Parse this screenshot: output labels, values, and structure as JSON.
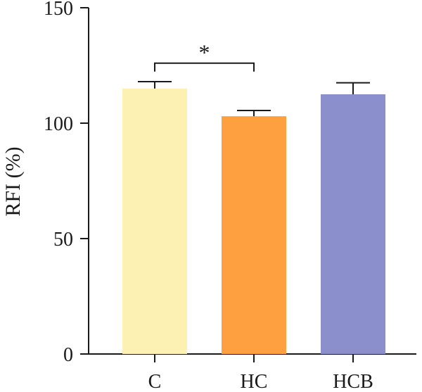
{
  "chart_data": {
    "type": "bar",
    "categories": [
      "C",
      "HC",
      "HCB"
    ],
    "values": [
      115,
      103,
      112.5
    ],
    "errors": [
      3,
      2.5,
      5
    ],
    "colors": [
      "#FDF0B3",
      "#FFA040",
      "#8B90CC"
    ],
    "ylabel": "RFI (%)",
    "ylim": [
      0,
      150
    ],
    "yticks": [
      "0",
      "50",
      "100",
      "150"
    ],
    "ytick_values": [
      0,
      50,
      100,
      150
    ],
    "grid": false,
    "significance": [
      {
        "from": 0,
        "to": 1,
        "label": "*",
        "y": 126
      }
    ]
  }
}
